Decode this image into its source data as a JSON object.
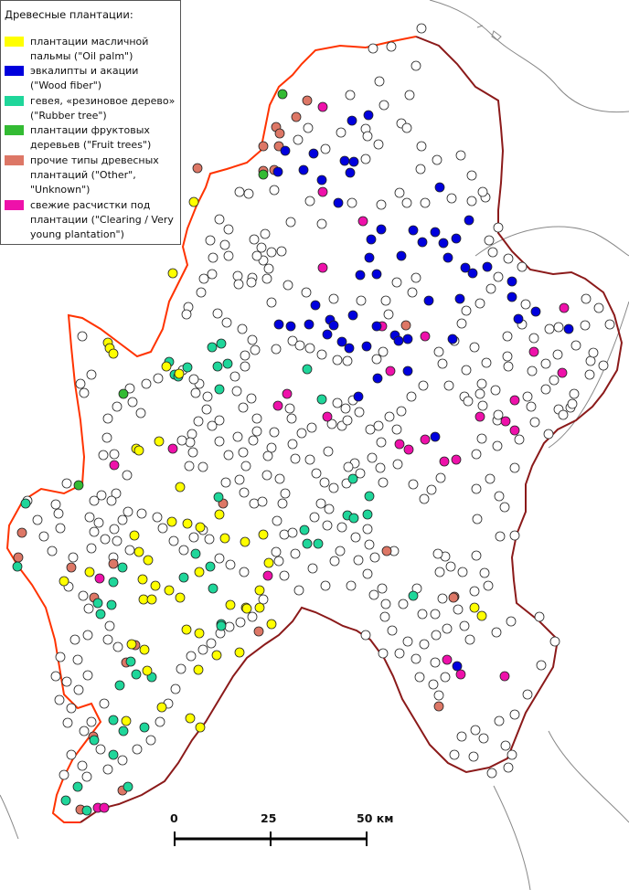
{
  "legend": {
    "title": "Древесные плантации:",
    "items": [
      {
        "key": "oil_palm",
        "color": "#ffff00",
        "label": "плантации масличной пальмы (\"Oil palm\")"
      },
      {
        "key": "wood_fiber",
        "color": "#0000dd",
        "label": "эвкалипты и акации (\"Wood fiber\")"
      },
      {
        "key": "rubber",
        "color": "#1fd69a",
        "label": "гевея, «резиновое дерево» (\"Rubber tree\")"
      },
      {
        "key": "fruit",
        "color": "#33bb33",
        "label": "плантации фруктовых деревьев (\"Fruit trees\")"
      },
      {
        "key": "other",
        "color": "#dd7766",
        "label": "прочие типы древесных плантаций (\"Other\", \"Unknown\")"
      },
      {
        "key": "clearing",
        "color": "#ee11aa",
        "label": "свежие расчистки под плантации (\"Clearing / Very young plantation\")"
      }
    ]
  },
  "scale_bar": {
    "ticks": [
      "0",
      "25",
      "50 км"
    ]
  },
  "colors": {
    "boundary_red": "#ff3300",
    "boundary_brown": "#8b1a1a",
    "coast": "#888888",
    "unclassified_point": "#ffffff"
  }
}
